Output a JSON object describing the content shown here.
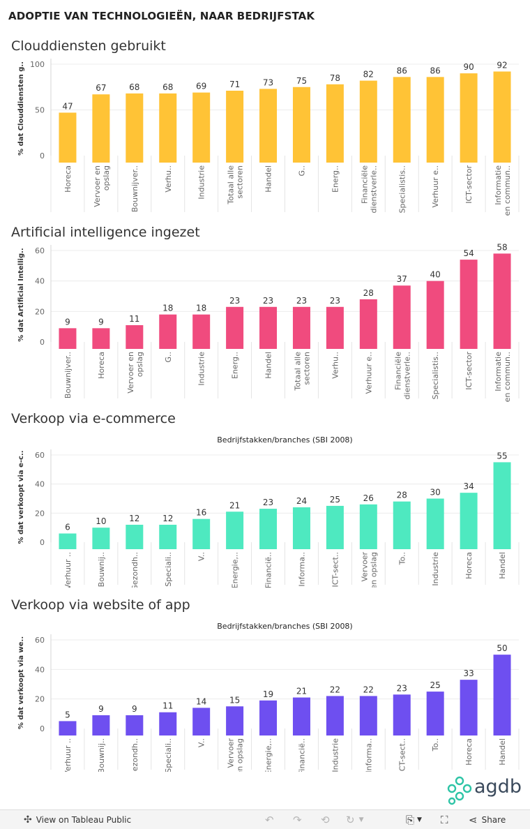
{
  "dashboard": {
    "title": "ADOPTIE VAN TECHNOLOGIEËN, NAAR BEDRIJFSTAK"
  },
  "chart_data": [
    {
      "type": "bar",
      "title": "Clouddiensten gebruikt",
      "caption": "",
      "ylabel": "% dat Clouddiensten g..",
      "color": "#ffc336",
      "ylim": [
        0,
        100
      ],
      "yticks": [
        0,
        50,
        100
      ],
      "categories": [
        [
          "Horeca"
        ],
        [
          "Vervoer en",
          "opslag"
        ],
        [
          "Bouwnijver.."
        ],
        [
          "Verhu.."
        ],
        [
          "Industrie"
        ],
        [
          "Totaal alle",
          "sectoren"
        ],
        [
          "Handel"
        ],
        [
          "G.."
        ],
        [
          "Energ.."
        ],
        [
          "Financiële",
          "dienstverle.."
        ],
        [
          "Specialistis.."
        ],
        [
          "Verhuur e.."
        ],
        [
          "ICT-sector"
        ],
        [
          "Informatie",
          "en commun.."
        ]
      ],
      "values": [
        47,
        67,
        68,
        68,
        69,
        71,
        73,
        75,
        78,
        82,
        86,
        86,
        90,
        92
      ]
    },
    {
      "type": "bar",
      "title": "Artificial intelligence ingezet",
      "caption": "",
      "ylabel": "% dat Artificial Intellig..",
      "color": "#f04b7e",
      "ylim": [
        0,
        60
      ],
      "yticks": [
        0,
        20,
        40,
        60
      ],
      "categories": [
        [
          "Bouwnijver.."
        ],
        [
          "Horeca"
        ],
        [
          "Vervoer en",
          "opslag"
        ],
        [
          "G.."
        ],
        [
          "Industrie"
        ],
        [
          "Energ.."
        ],
        [
          "Handel"
        ],
        [
          "Totaal alle",
          "sectoren"
        ],
        [
          "Verhu.."
        ],
        [
          "Verhuur e.."
        ],
        [
          "Financiële",
          "dienstverle.."
        ],
        [
          "Specialistis.."
        ],
        [
          "ICT-sector"
        ],
        [
          "Informatie",
          "en commun.."
        ]
      ],
      "values": [
        9,
        9,
        11,
        18,
        18,
        23,
        23,
        23,
        23,
        28,
        37,
        40,
        54,
        58
      ]
    },
    {
      "type": "bar",
      "title": "Verkoop via e-commerce",
      "caption": "Bedrijfstakken/branches (SBI 2008)",
      "ylabel": "% dat verkoopt via e-c..",
      "color": "#4ee9c0",
      "ylim": [
        0,
        60
      ],
      "yticks": [
        0,
        20,
        40,
        60
      ],
      "categories": [
        [
          "Verhuur .."
        ],
        [
          "Bouwnij.."
        ],
        [
          "Gezondh.."
        ],
        [
          "Speciali.."
        ],
        [
          "V.."
        ],
        [
          "Energie,.."
        ],
        [
          "Financië.."
        ],
        [
          "Informa.."
        ],
        [
          "ICT-sect.."
        ],
        [
          "Vervoer",
          "en opslag"
        ],
        [
          "To.."
        ],
        [
          "Industrie"
        ],
        [
          "Horeca"
        ],
        [
          "Handel"
        ]
      ],
      "values": [
        6,
        10,
        12,
        12,
        16,
        21,
        23,
        24,
        25,
        26,
        28,
        30,
        34,
        55
      ]
    },
    {
      "type": "bar",
      "title": "Verkoop via website of app",
      "caption": "Bedrijfstakken/branches (SBI 2008)",
      "ylabel": "% dat verkoopt via we..",
      "color": "#6e4ff0",
      "ylim": [
        0,
        60
      ],
      "yticks": [
        0,
        20,
        40,
        60
      ],
      "categories": [
        [
          "Verhuur .."
        ],
        [
          "Bouwnij.."
        ],
        [
          "Gezondh.."
        ],
        [
          "Speciali.."
        ],
        [
          "V.."
        ],
        [
          "Vervoer",
          "en opslag"
        ],
        [
          "Energie,.."
        ],
        [
          "Financië.."
        ],
        [
          "Industrie"
        ],
        [
          "Informa.."
        ],
        [
          "ICT-sect.."
        ],
        [
          "To.."
        ],
        [
          "Horeca"
        ],
        [
          "Handel"
        ]
      ],
      "values": [
        5,
        9,
        9,
        11,
        14,
        15,
        19,
        21,
        22,
        22,
        23,
        25,
        33,
        50
      ]
    }
  ],
  "logo": {
    "text": "agdb",
    "accent": "#2ec4a6"
  },
  "toolbar": {
    "view_label": "View on Tableau Public",
    "share_label": "Share",
    "undo_icon": "undo-icon",
    "redo_icon": "redo-icon",
    "revert_icon": "revert-icon",
    "pause_icon": "pause-icon",
    "download_icon": "download-icon",
    "fullscreen_icon": "fullscreen-icon",
    "share_icon": "share-icon"
  }
}
